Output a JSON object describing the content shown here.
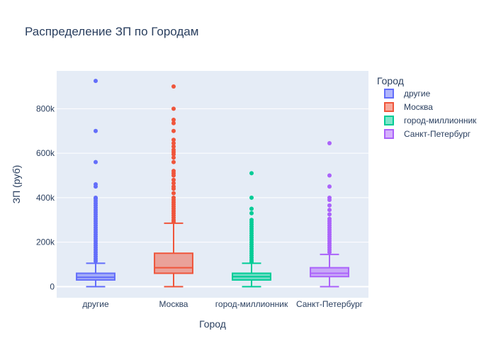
{
  "chart_data": {
    "type": "box",
    "title": "Распределение ЗП по Городам",
    "xlabel": "Город",
    "ylabel": "ЗП (руб)",
    "ylim": [
      -50000,
      970000
    ],
    "yticks": [
      0,
      200000,
      400000,
      600000,
      800000
    ],
    "ytick_labels": [
      "0",
      "200k",
      "400k",
      "600k",
      "800k"
    ],
    "grid": true,
    "legend": {
      "title": "Город",
      "position": "right"
    },
    "categories": [
      "другие",
      "Москва",
      "город-миллионник",
      "Санкт-Петербург"
    ],
    "series": [
      {
        "name": "другие",
        "color": "#636efa",
        "fill": "rgba(99,110,250,0.5)",
        "box": {
          "lowerfence": 0,
          "q1": 30000,
          "median": 42000,
          "q3": 60000,
          "upperfence": 105000
        },
        "outliers": [
          925000,
          700000,
          560000,
          460000,
          450000,
          400000,
          395000,
          385000,
          375000,
          365000,
          355000,
          345000,
          335000,
          325000,
          315000,
          305000,
          295000,
          285000,
          275000,
          265000,
          255000,
          245000,
          235000,
          225000,
          215000,
          205000,
          195000,
          185000,
          175000,
          165000,
          155000,
          145000,
          135000,
          125000,
          115000
        ]
      },
      {
        "name": "Москва",
        "color": "#ef553b",
        "fill": "rgba(239,85,59,0.5)",
        "box": {
          "lowerfence": 0,
          "q1": 60000,
          "median": 85000,
          "q3": 150000,
          "upperfence": 285000
        },
        "outliers": [
          900000,
          800000,
          750000,
          735000,
          700000,
          660000,
          645000,
          630000,
          615000,
          605000,
          595000,
          580000,
          560000,
          520000,
          510000,
          500000,
          480000,
          465000,
          450000,
          440000,
          420000,
          400000,
          390000,
          380000,
          370000,
          360000,
          350000,
          340000,
          330000,
          320000,
          310000,
          300000,
          292000
        ]
      },
      {
        "name": "город-миллионник",
        "color": "#00cc96",
        "fill": "rgba(0,204,150,0.5)",
        "box": {
          "lowerfence": 0,
          "q1": 30000,
          "median": 45000,
          "q3": 60000,
          "upperfence": 105000
        },
        "outliers": [
          510000,
          400000,
          350000,
          330000,
          300000,
          290000,
          280000,
          270000,
          260000,
          250000,
          240000,
          230000,
          220000,
          210000,
          200000,
          190000,
          180000,
          170000,
          160000,
          150000,
          140000,
          130000,
          120000,
          112000
        ]
      },
      {
        "name": "Санкт-Петербург",
        "color": "#ab63fa",
        "fill": "rgba(171,99,250,0.5)",
        "box": {
          "lowerfence": 0,
          "q1": 45000,
          "median": 60000,
          "q3": 85000,
          "upperfence": 145000
        },
        "outliers": [
          645000,
          500000,
          450000,
          400000,
          390000,
          365000,
          345000,
          325000,
          305000,
          295000,
          285000,
          275000,
          265000,
          255000,
          245000,
          235000,
          225000,
          215000,
          205000,
          195000,
          185000,
          175000,
          165000,
          155000
        ]
      }
    ]
  }
}
